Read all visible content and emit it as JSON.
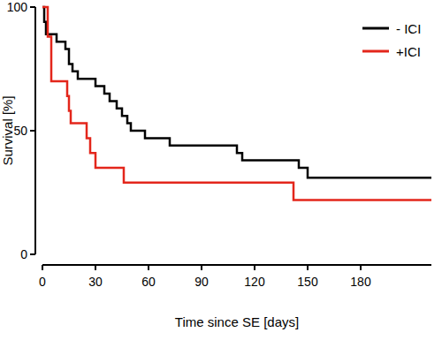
{
  "chart_data": {
    "type": "line",
    "line_style": "step",
    "legend": "top-right",
    "x_label": "Time since SE [days]",
    "y_label": "Survival [%]",
    "xlim": [
      0,
      220
    ],
    "xticks": [
      0,
      30,
      60,
      90,
      120,
      150,
      180
    ],
    "ylim": [
      0,
      100
    ],
    "yticks": [
      0,
      50,
      100
    ],
    "series": [
      {
        "name": "- ICI",
        "color": "#000000",
        "x": [
          0,
          1,
          2,
          8,
          13,
          15,
          17,
          20,
          30,
          35,
          38,
          42,
          45,
          48,
          50,
          58,
          72,
          110,
          113,
          145,
          150,
          220
        ],
        "values": [
          100,
          94,
          89,
          86,
          83,
          77,
          74,
          71,
          68,
          65,
          62,
          59,
          56,
          53,
          50,
          47,
          44,
          41,
          38,
          35,
          31,
          31
        ]
      },
      {
        "name": "+ICI",
        "color": "#e3261b",
        "x": [
          0,
          3,
          5,
          14,
          15,
          16,
          25,
          27,
          30,
          46,
          142,
          220
        ],
        "values": [
          100,
          88,
          70,
          64,
          58,
          53,
          47,
          41,
          35,
          29,
          22,
          22
        ]
      }
    ]
  }
}
